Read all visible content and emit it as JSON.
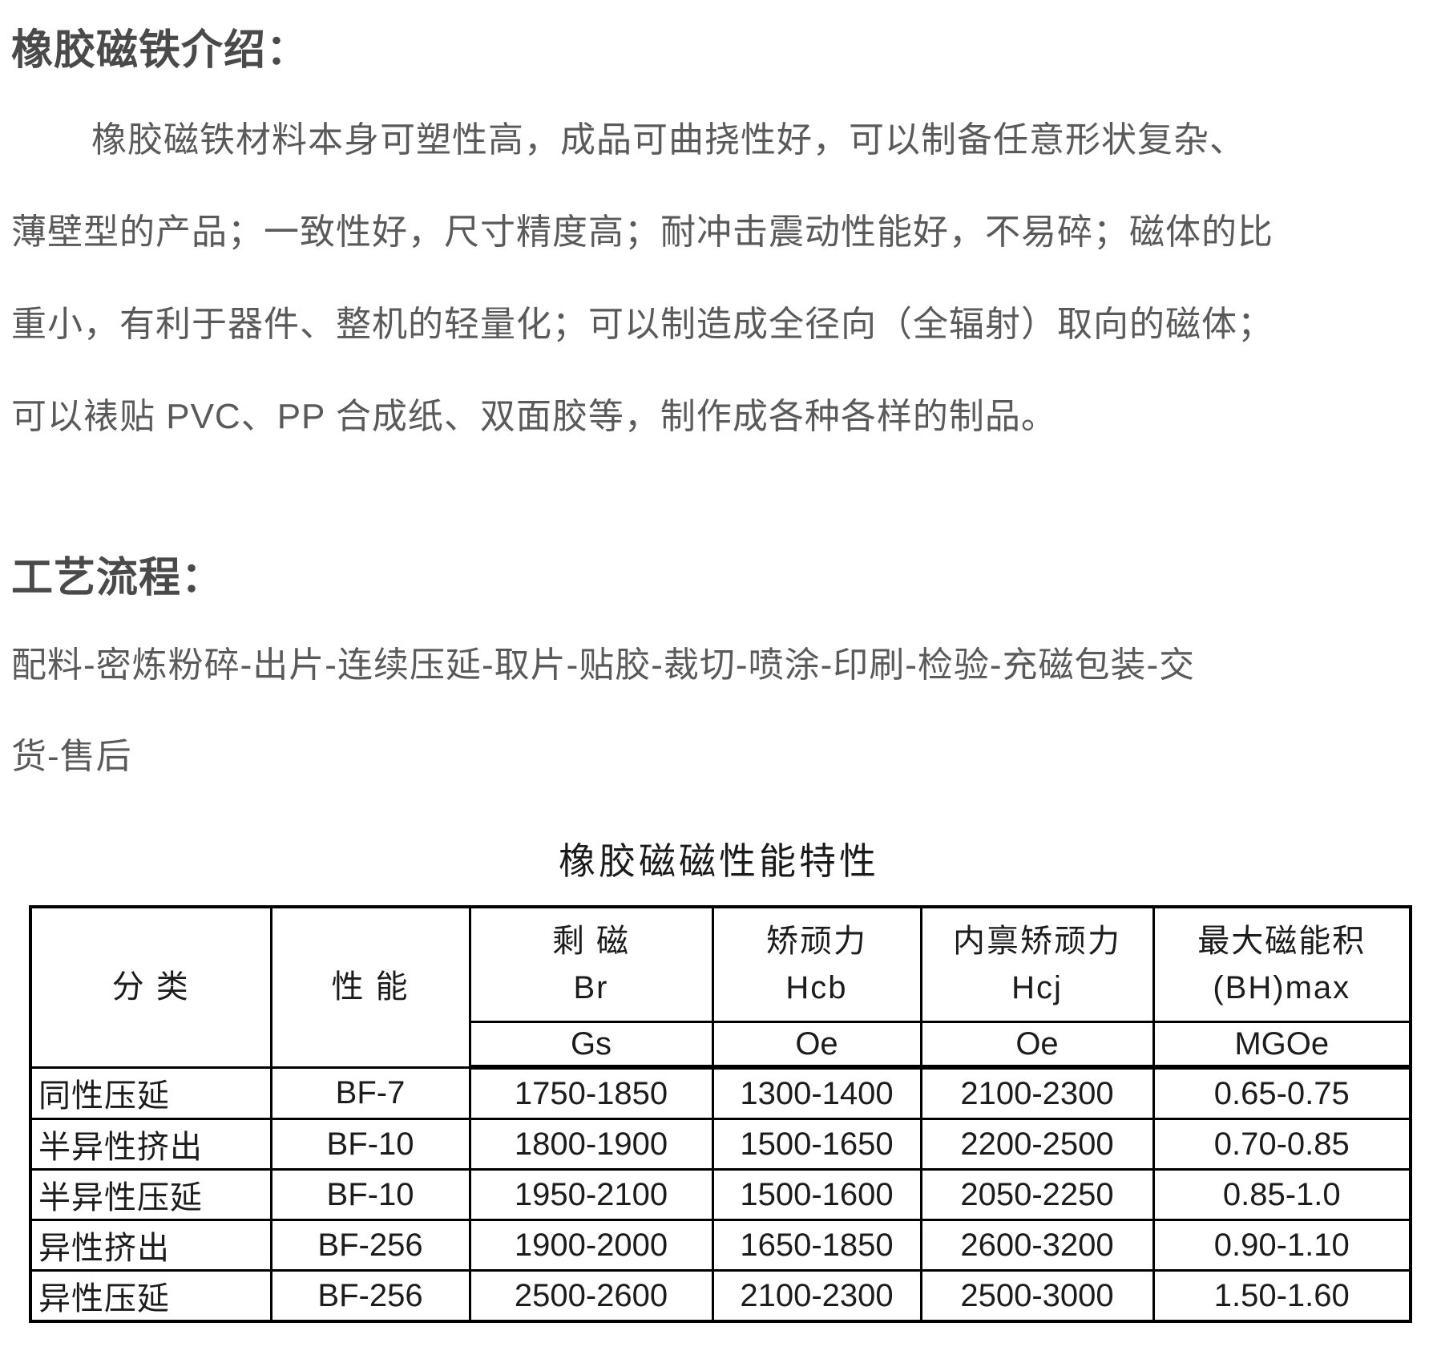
{
  "intro": {
    "heading": "橡胶磁铁介绍：",
    "lines": [
      "橡胶磁铁材料本身可塑性高，成品可曲挠性好，可以制备任意形状复杂、",
      "薄壁型的产品；一致性好，尺寸精度高；耐冲击震动性能好，不易碎；磁体的比",
      "重小，有利于器件、整机的轻量化；可以制造成全径向（全辐射）取向的磁体；",
      "可以裱贴 PVC、PP 合成纸、双面胶等，制作成各种各样的制品。"
    ]
  },
  "process": {
    "heading": "工艺流程：",
    "lines": [
      "配料-密炼粉碎-出片-连续压延-取片-贴胶-裁切-喷涂-印刷-检验-充磁包装-交",
      "货-售后"
    ]
  },
  "table": {
    "title": "橡胶磁磁性能特性",
    "columns": [
      {
        "name": "分 类",
        "symbol": "",
        "unit": ""
      },
      {
        "name": "性 能",
        "symbol": "",
        "unit": ""
      },
      {
        "name": "剩 磁",
        "symbol": "Br",
        "unit": "Gs"
      },
      {
        "name": "矫顽力",
        "symbol": "Hcb",
        "unit": "Oe"
      },
      {
        "name": "内禀矫顽力",
        "symbol": "Hcj",
        "unit": "Oe"
      },
      {
        "name": "最大磁能积",
        "symbol": "(BH)max",
        "unit": "MGOe"
      }
    ],
    "rows": [
      [
        "同性压延",
        "BF-7",
        "1750-1850",
        "1300-1400",
        "2100-2300",
        "0.65-0.75"
      ],
      [
        "半异性挤出",
        "BF-10",
        "1800-1900",
        "1500-1650",
        "2200-2500",
        "0.70-0.85"
      ],
      [
        "半异性压延",
        "BF-10",
        "1950-2100",
        "1500-1600",
        "2050-2250",
        "0.85-1.0"
      ],
      [
        "异性挤出",
        "BF-256",
        "1900-2000",
        "1650-1850",
        "2600-3200",
        "0.90-1.10"
      ],
      [
        "异性压延",
        "BF-256",
        "2500-2600",
        "2100-2300",
        "2500-3000",
        "1.50-1.60"
      ]
    ]
  },
  "colors": {
    "heading_text": "#4a4a4a",
    "body_text": "#5a5a5a",
    "table_text": "#1c1c1c",
    "table_border": "#000000"
  }
}
